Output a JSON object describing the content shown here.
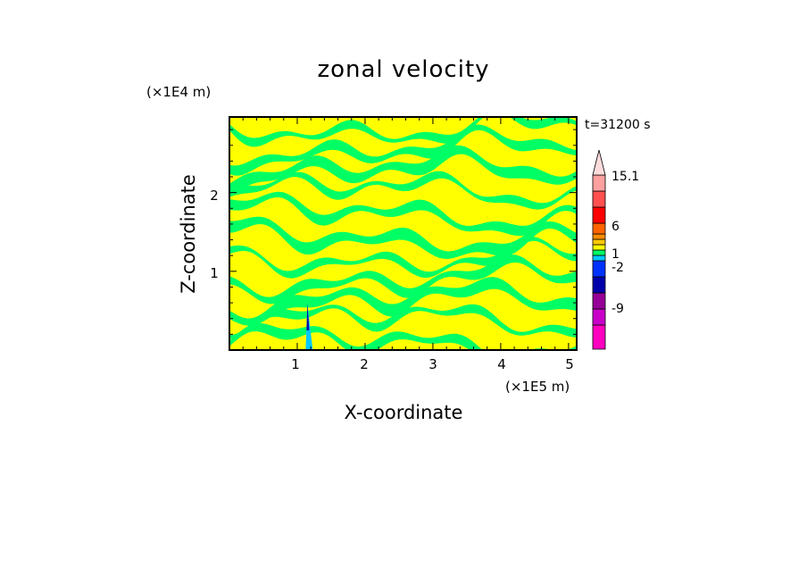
{
  "chart_data": {
    "type": "heatmap",
    "title": "zonal velocity",
    "xlabel": "X-coordinate",
    "ylabel": "Z-coordinate",
    "x_scale_label": "(×1E5 m)",
    "y_scale_label": "(×1E4 m)",
    "time_label": "t=31200 s",
    "xlim": [
      0,
      5.12
    ],
    "ylim": [
      0,
      2.96
    ],
    "x_ticks": [
      1,
      2,
      3,
      4,
      5
    ],
    "y_ticks": [
      1,
      2
    ],
    "colorbar": {
      "levels": [
        {
          "color": "#ff00bf",
          "label": ""
        },
        {
          "color": "#c800c8",
          "label": ""
        },
        {
          "color": "#960096",
          "label": "-9"
        },
        {
          "color": "#0000aa",
          "label": ""
        },
        {
          "color": "#0032ff",
          "label": ""
        },
        {
          "color": "#00c8ff",
          "label": "-2"
        },
        {
          "color": "#00ff64",
          "label": ""
        },
        {
          "color": "#ffff00",
          "label": "1"
        },
        {
          "color": "#ffc800",
          "label": ""
        },
        {
          "color": "#ff8c00",
          "label": ""
        },
        {
          "color": "#ff6400",
          "label": "6"
        },
        {
          "color": "#ff0000",
          "label": ""
        },
        {
          "color": "#ff5050",
          "label": ""
        },
        {
          "color": "#ffa0a0",
          "label": "15.1"
        },
        {
          "color": "#ffdcdc",
          "label": ""
        }
      ],
      "extend": "max"
    },
    "field_colors": {
      "background": "#ffff00",
      "band": "#00ff64",
      "jet_core": "#0000aa",
      "jet_edge": "#00c8ff"
    }
  }
}
